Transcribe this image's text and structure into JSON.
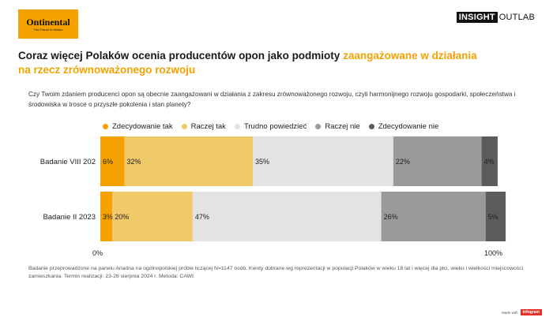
{
  "logo": {
    "name": "Ontinental",
    "tagline": "The Future in Motion"
  },
  "brand": {
    "left": "INSIGHT",
    "right": "OUTLAB"
  },
  "headline": {
    "plain": "Coraz więcej Polaków ocenia producentów opon jako podmioty ",
    "highlight": "zaangażowane w działania na rzecz zrównoważonego rozwoju"
  },
  "question": "Czy Twoim zdaniem producenci opon są obecnie zaangażowani w działania z zakresu zrównoważonego rozwoju, czyli harmonijnego rozwoju gospodarki, społeczeństwa i środowiska w trosce o przyszłe pokolenia i stan planety?",
  "footnote": "Badanie przeprowadzone na panelu Ariadna na ogólnopolskiej próbie liczącej N=1147 osób. Kwoty dobrane wg reprezentacji w populacji Polaków w wieku 18 lat i więcej dla płci, wieku i wielkości miejscowości zamieszkania. Termin realizacji: 23-26 sierpnia 2024 r. Metoda: CAWI.",
  "made_with": {
    "text": "Made with",
    "badge": "infogram"
  },
  "chart_data": {
    "type": "bar",
    "orientation": "horizontal",
    "stacked": true,
    "categories": [
      "Badanie VIII 202",
      "Badanie II 2023"
    ],
    "series": [
      {
        "name": "Zdecydowanie tak",
        "color": "#f5a200",
        "values": [
          6,
          3
        ]
      },
      {
        "name": "Raczej tak",
        "color": "#f0c96a",
        "values": [
          32,
          20
        ]
      },
      {
        "name": "Trudno powiedzieć",
        "color": "#e3e3e3",
        "values": [
          35,
          47
        ]
      },
      {
        "name": "Raczej nie",
        "color": "#9a9a9a",
        "values": [
          22,
          26
        ]
      },
      {
        "name": "Zdecydowanie nie",
        "color": "#5c5c5c",
        "values": [
          4,
          5
        ]
      }
    ],
    "value_suffix": "%",
    "x_ticks": [
      "0%",
      "100%"
    ],
    "xlim": [
      0,
      100
    ],
    "legend_position": "top",
    "grid": false
  }
}
